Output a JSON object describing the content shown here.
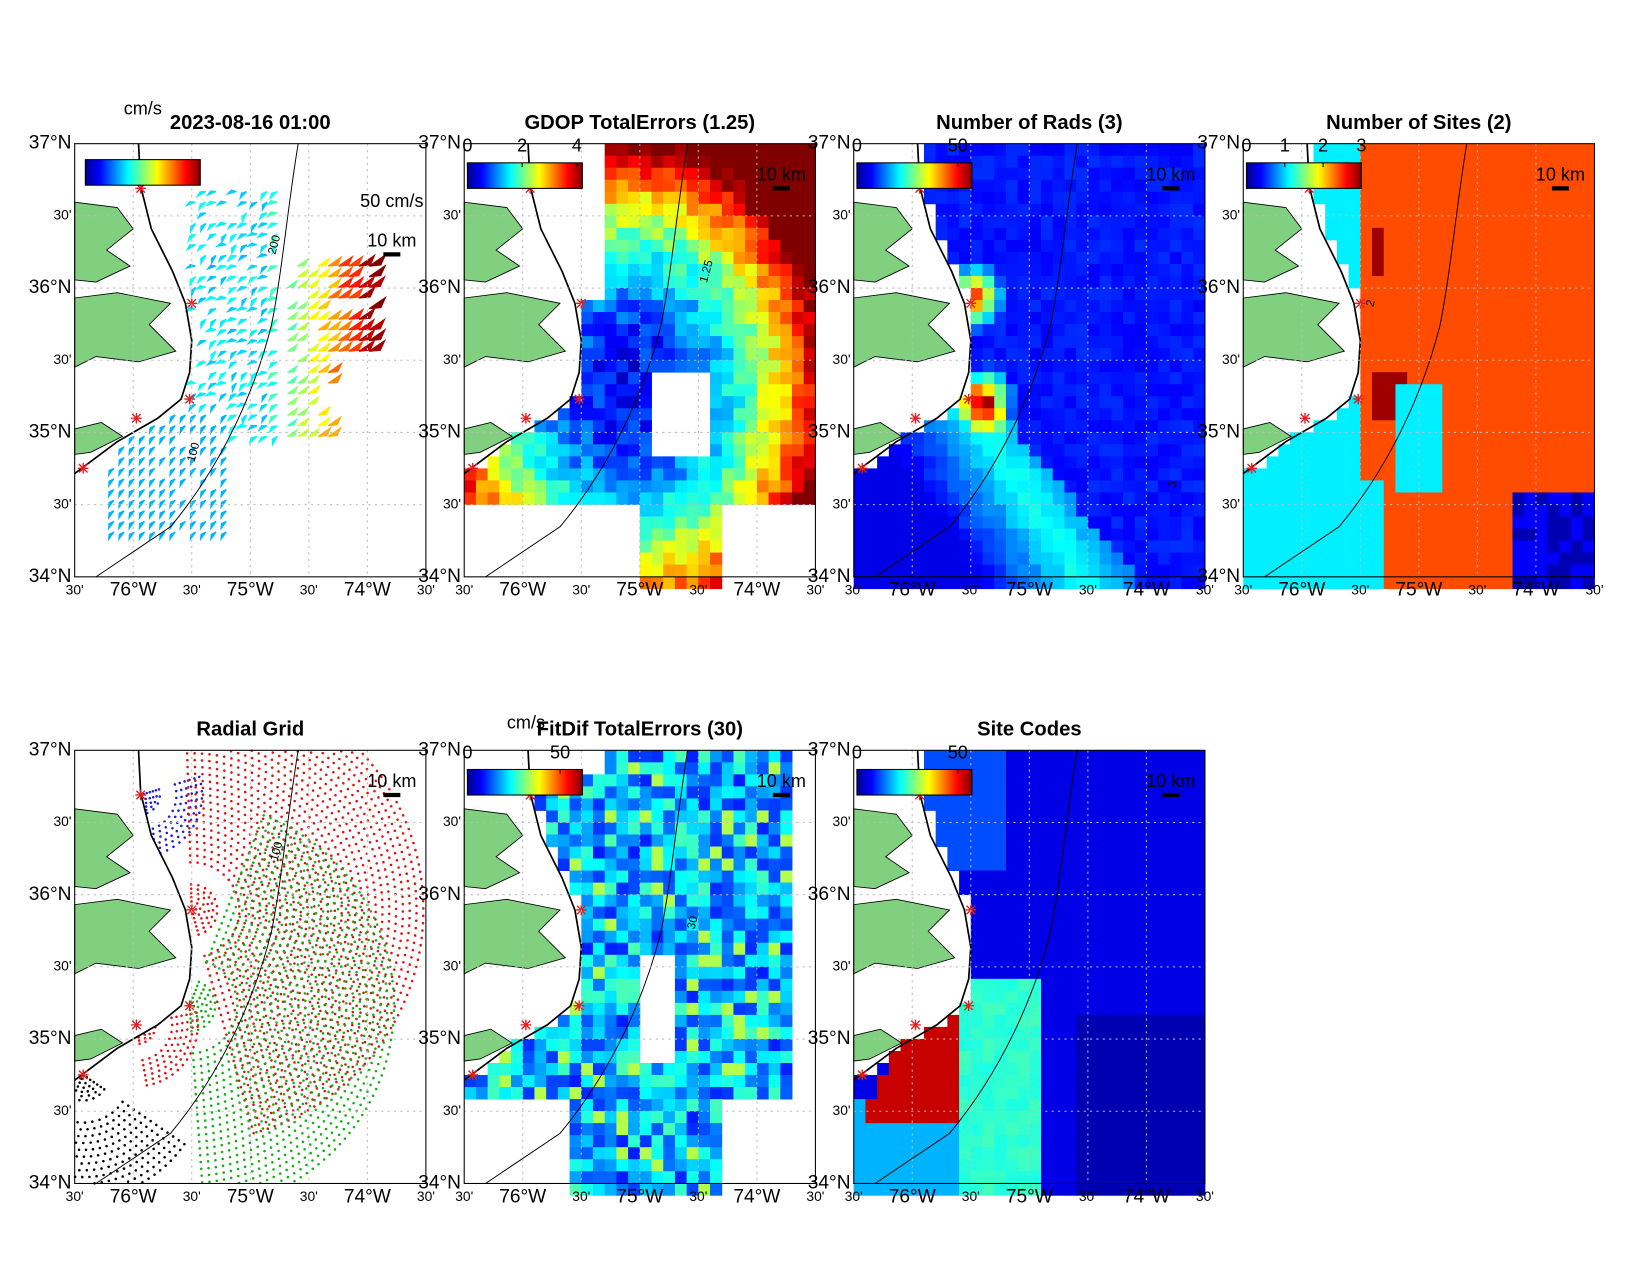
{
  "lat_ticks": [
    "37°N",
    "30'",
    "36°N",
    "30'",
    "35°N",
    "30'",
    "34°N"
  ],
  "lon_ticks": [
    "30'",
    "76°W",
    "30'",
    "75°W",
    "30'",
    "74°W",
    "30'"
  ],
  "panels": [
    {
      "title": "2023-08-16 01:00",
      "colorbar_label": "cm/s",
      "vector_scale": "50 cm/s",
      "scale_bar": "10 km",
      "contour_labels": [
        "200",
        "100"
      ]
    },
    {
      "title": "GDOP TotalErrors (1.25)",
      "colorbar_ticks": [
        0,
        2,
        4
      ],
      "clim": [
        0,
        4.2
      ],
      "scale_bar": "10 km",
      "contour_labels": [
        "1.25"
      ]
    },
    {
      "title": "Number of Rads (3)",
      "colorbar_ticks": [
        0,
        50
      ],
      "clim": [
        0,
        57
      ],
      "scale_bar": "10 km",
      "contour_labels": [
        "3"
      ]
    },
    {
      "title": "Number of Sites (2)",
      "colorbar_ticks": [
        0,
        1,
        2,
        3
      ],
      "clim": [
        0,
        3
      ],
      "scale_bar": "10 km",
      "contour_labels": [
        "2"
      ]
    },
    {
      "title": "Radial Grid",
      "scale_bar": "10 km",
      "contour_labels": [
        "100"
      ]
    },
    {
      "title": "FitDif TotalErrors (30)",
      "colorbar_label": "cm/s",
      "colorbar_ticks": [
        0,
        50
      ],
      "clim": [
        0,
        62
      ],
      "scale_bar": "10 km",
      "contour_labels": [
        "30"
      ]
    },
    {
      "title": "Site Codes",
      "colorbar_ticks": [
        0,
        50
      ],
      "clim": [
        0,
        57
      ],
      "scale_bar": "10 km",
      "contour_labels": []
    }
  ]
}
